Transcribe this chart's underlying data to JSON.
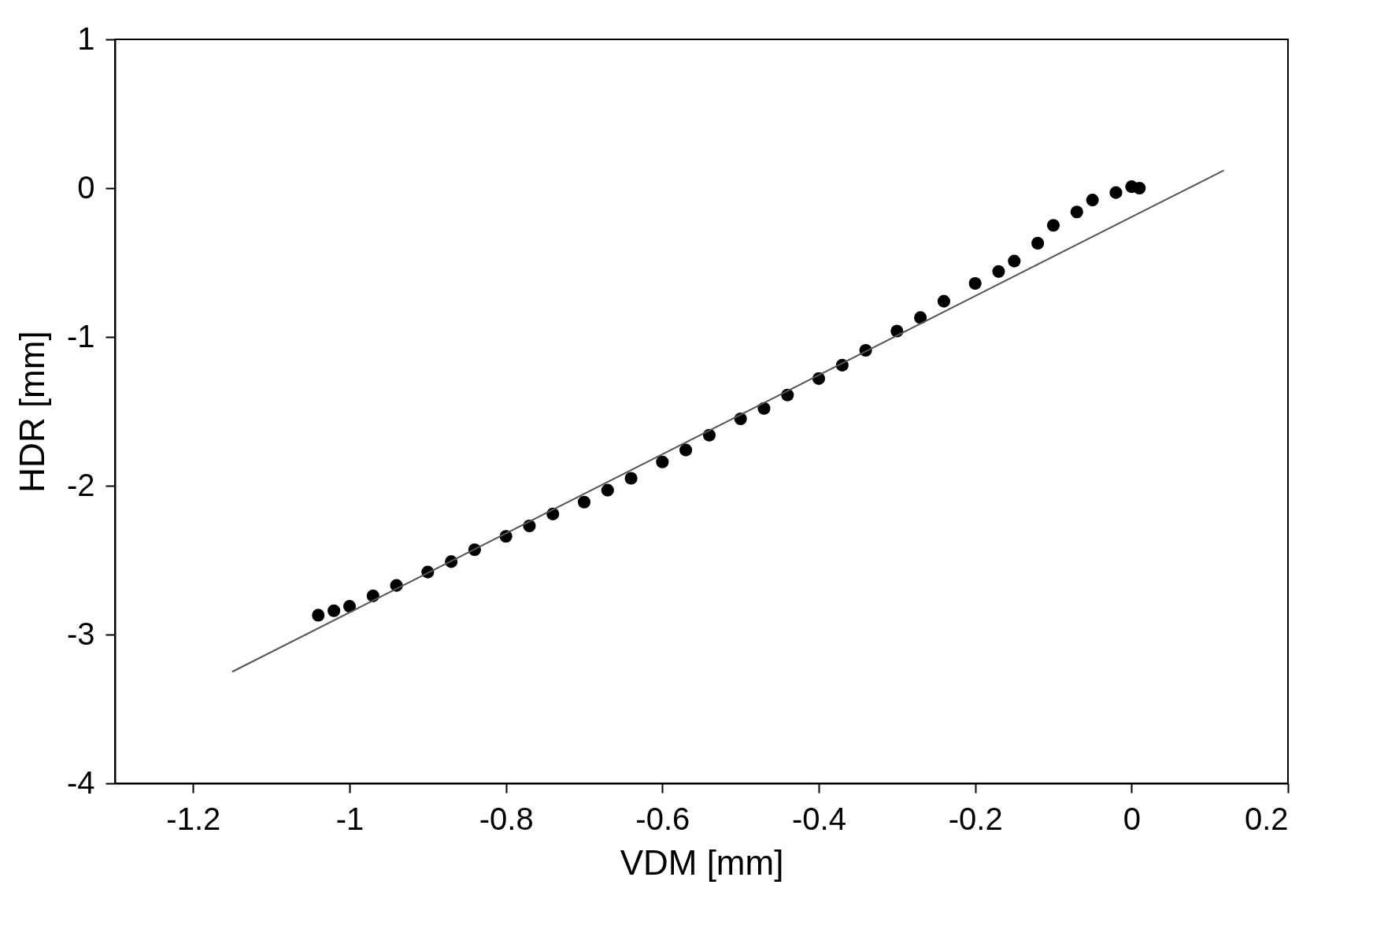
{
  "chart_data": {
    "type": "scatter",
    "xlabel": "VDM [mm]",
    "ylabel": "HDR [mm]",
    "xlim": [
      -1.3,
      0.2
    ],
    "xticks": [
      -1.2,
      -1,
      -0.8,
      -0.6,
      -0.4,
      -0.2,
      0,
      0.2
    ],
    "ylim": [
      -4,
      1
    ],
    "yticks": [
      -4,
      -3,
      -2,
      -1,
      0,
      1
    ],
    "grid": false,
    "series": [
      {
        "color": "#000000",
        "marker": "circle",
        "x": [
          -1.04,
          -1.02,
          -1.0,
          -0.97,
          -0.94,
          -0.9,
          -0.87,
          -0.84,
          -0.8,
          -0.77,
          -0.74,
          -0.7,
          -0.67,
          -0.64,
          -0.6,
          -0.57,
          -0.54,
          -0.5,
          -0.47,
          -0.44,
          -0.4,
          -0.37,
          -0.34,
          -0.3,
          -0.27,
          -0.24,
          -0.2,
          -0.17,
          -0.15,
          -0.12,
          -0.1,
          -0.07,
          -0.05,
          -0.02,
          0,
          0.01
        ],
        "values": [
          -2.87,
          -2.84,
          -2.81,
          -2.74,
          -2.67,
          -2.58,
          -2.51,
          -2.43,
          -2.34,
          -2.27,
          -2.19,
          -2.11,
          -2.03,
          -1.95,
          -1.84,
          -1.76,
          -1.66,
          -1.55,
          -1.48,
          -1.39,
          -1.28,
          -1.19,
          -1.09,
          -0.96,
          -0.87,
          -0.76,
          -0.64,
          -0.56,
          -0.49,
          -0.37,
          -0.25,
          -0.16,
          -0.08,
          -0.03,
          0.01,
          0.0
        ]
      },
      {
        "type": "line",
        "marker": "none",
        "color": "#555555",
        "x": [
          -1.15,
          0.118
        ],
        "values": [
          -3.25,
          0.12
        ]
      }
    ]
  }
}
